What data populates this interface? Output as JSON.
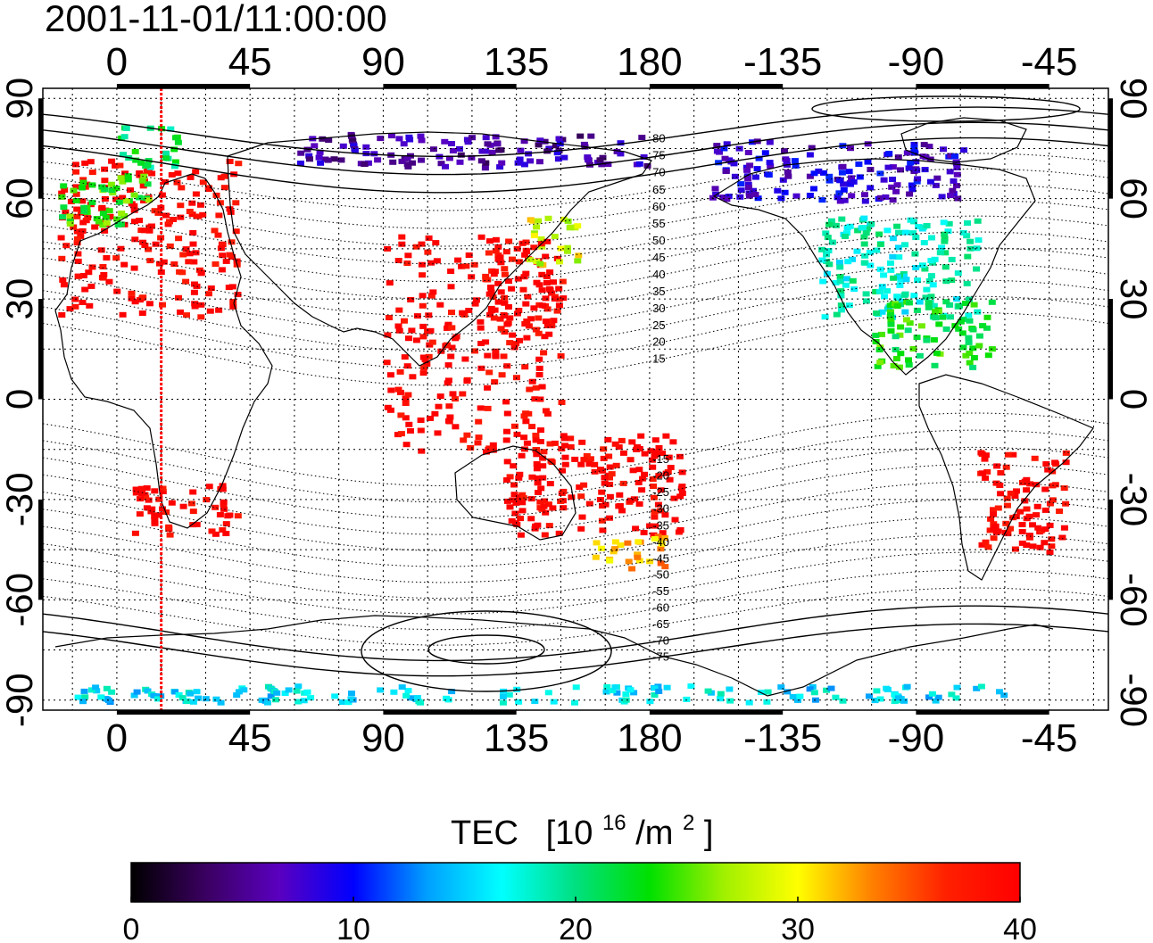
{
  "title": "2001-11-01/11:00:00",
  "x_axis": {
    "top_ticks": [
      "0",
      "45",
      "90",
      "135",
      "180",
      "-135",
      "-90",
      "-45"
    ],
    "bottom_ticks": [
      "0",
      "45",
      "90",
      "135",
      "180",
      "-135",
      "-90",
      "-45"
    ],
    "tick_longitudes": [
      0,
      45,
      90,
      135,
      180,
      225,
      270,
      315
    ],
    "range": [
      -25,
      335
    ]
  },
  "y_axis": {
    "ticks": [
      "90",
      "60",
      "30",
      "0",
      "-30",
      "-60",
      "-90"
    ],
    "tick_latitudes": [
      90,
      60,
      30,
      0,
      -30,
      -60,
      -90
    ],
    "range": [
      -93,
      93
    ]
  },
  "contour_labels": {
    "north": [
      "80",
      "75",
      "70",
      "65",
      "60",
      "55",
      "50",
      "45",
      "40",
      "35",
      "30",
      "25",
      "20",
      "15"
    ],
    "south": [
      "-15",
      "-20",
      "-25",
      "-30",
      "-35",
      "-40",
      "-45",
      "-50",
      "-55",
      "-60",
      "-65",
      "-70",
      "-75"
    ]
  },
  "colorbar": {
    "label": "TEC",
    "unit_prefix": "[10",
    "unit_exp": "16",
    "unit_mid": "/m",
    "unit_exp2": "2",
    "unit_suffix": "]",
    "ticks": [
      "0",
      "10",
      "20",
      "30",
      "40"
    ],
    "range": [
      0,
      40
    ],
    "colors": [
      "#000000",
      "#3a0060",
      "#5a00c0",
      "#0000ff",
      "#00a0ff",
      "#00ffff",
      "#00e080",
      "#00e000",
      "#a0f000",
      "#ffff00",
      "#ff8000",
      "#ff2000",
      "#ff0000"
    ]
  },
  "marker_line_longitude": 15,
  "chart_data": {
    "type": "map",
    "title": "2001-11-01/11:00:00",
    "xlim": [
      -25,
      335
    ],
    "ylim": [
      -93,
      93
    ],
    "color_scale": "TEC [10^16/m^2]",
    "clim": [
      0,
      40
    ],
    "regions": [
      {
        "lon": [
          -20,
          40
        ],
        "lat": [
          25,
          72
        ],
        "tec": 40
      },
      {
        "lon": [
          -20,
          10
        ],
        "lat": [
          52,
          68
        ],
        "tec": 24
      },
      {
        "lon": [
          0,
          20
        ],
        "lat": [
          70,
          82
        ],
        "tec": 21
      },
      {
        "lon": [
          125,
          150
        ],
        "lat": [
          22,
          48
        ],
        "tec": 40
      },
      {
        "lon": [
          138,
          155
        ],
        "lat": [
          40,
          55
        ],
        "tec": 29
      },
      {
        "lon": [
          237,
          290
        ],
        "lat": [
          25,
          55
        ],
        "tec": 18
      },
      {
        "lon": [
          255,
          295
        ],
        "lat": [
          10,
          30
        ],
        "tec": 23
      },
      {
        "lon": [
          200,
          285
        ],
        "lat": [
          60,
          78
        ],
        "tec": 8
      },
      {
        "lon": [
          60,
          180
        ],
        "lat": [
          70,
          80
        ],
        "tec": 6
      },
      {
        "lon": [
          290,
          320
        ],
        "lat": [
          -45,
          -15
        ],
        "tec": 40
      },
      {
        "lon": [
          130,
          190
        ],
        "lat": [
          -40,
          -10
        ],
        "tec": 40
      },
      {
        "lon": [
          5,
          40
        ],
        "lat": [
          -40,
          -25
        ],
        "tec": 40
      },
      {
        "lon": [
          90,
          150
        ],
        "lat": [
          -15,
          50
        ],
        "tec": 40
      },
      {
        "lon": [
          160,
          185
        ],
        "lat": [
          -50,
          -40
        ],
        "tec": 32
      },
      {
        "lon": [
          -20,
          300
        ],
        "lat": [
          -90,
          -85
        ],
        "tec": 16
      }
    ]
  }
}
